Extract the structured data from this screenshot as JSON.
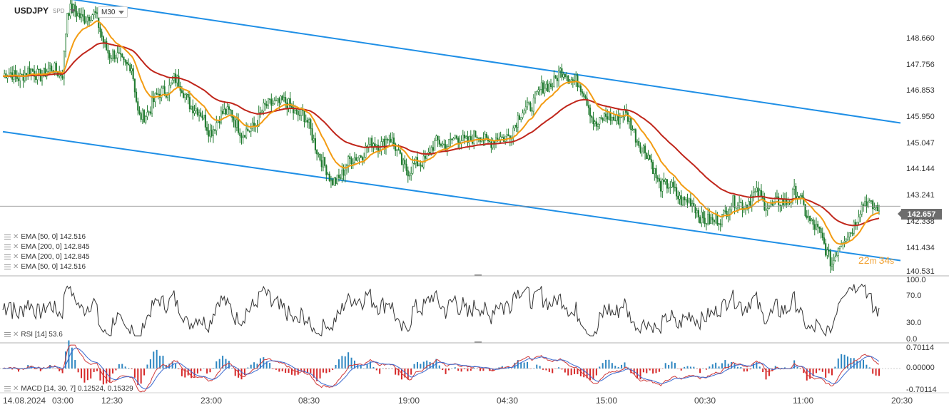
{
  "header": {
    "symbol": "USDJPY",
    "symbol_sub": "SPD",
    "timeframe": "M30"
  },
  "price_labels": [
    "148.660",
    "147.756",
    "146.853",
    "145.950",
    "145.047",
    "144.144",
    "143.241",
    "142.338",
    "141.434",
    "140.531"
  ],
  "current_price": "142.657",
  "countdown": {
    "minutes": "22",
    "minutes_unit": "m",
    "seconds": "34",
    "seconds_unit": "s"
  },
  "legends": {
    "ema1": "EMA [50,  0] 142.516",
    "ema2": "EMA [200,  0] 142.845",
    "ema3": "EMA [200,  0] 142.845",
    "ema4": "EMA [50,  0] 142.516",
    "rsi": "RSI [14] 53.6",
    "macd": "MACD [14, 30, 7] 0.12524, 0.15329"
  },
  "rsi_labels": [
    "100.0",
    "70.0",
    "30.0",
    "0.0"
  ],
  "macd_labels": [
    "0.70114",
    "0.00000",
    "-0.70114"
  ],
  "x_labels": [
    "14.08.2024",
    "03:00",
    "12:30",
    "23:00",
    "08:30",
    "19:00",
    "04:30",
    "15:00",
    "00:30",
    "11:00",
    "20:30"
  ],
  "colors": {
    "channel": "#1f8fe6",
    "ema50": "#f39c12",
    "ema200": "#c0261b",
    "candle": "#1f7a2e",
    "macd_line": "#d03a3a",
    "signal_line": "#3a6ad0",
    "hist_pos": "#2e86c1",
    "hist_neg": "#d62828"
  },
  "chart_data": [
    {
      "type": "candlestick",
      "title": "USDJPY",
      "timeframe": "M30",
      "ylim": [
        140.3,
        149.7
      ],
      "x_ticks": [
        "14.08.2024",
        "03:00",
        "12:30",
        "23:00",
        "08:30",
        "19:00",
        "04:30",
        "15:00",
        "00:30",
        "11:00",
        "20:30"
      ],
      "current_price": 142.657,
      "approx_close_path": [
        {
          "t": 0,
          "v": 147.1
        },
        {
          "t": 40,
          "v": 147.2
        },
        {
          "t": 84,
          "v": 147.3
        },
        {
          "t": 90,
          "v": 149.3
        },
        {
          "t": 130,
          "v": 149.1
        },
        {
          "t": 150,
          "v": 147.8
        },
        {
          "t": 180,
          "v": 147.5
        },
        {
          "t": 190,
          "v": 145.6
        },
        {
          "t": 240,
          "v": 147.0
        },
        {
          "t": 290,
          "v": 145.3
        },
        {
          "t": 320,
          "v": 146.0
        },
        {
          "t": 335,
          "v": 145.0
        },
        {
          "t": 380,
          "v": 146.3
        },
        {
          "t": 420,
          "v": 145.8
        },
        {
          "t": 440,
          "v": 144.7
        },
        {
          "t": 460,
          "v": 143.4
        },
        {
          "t": 500,
          "v": 144.5
        },
        {
          "t": 540,
          "v": 145.0
        },
        {
          "t": 570,
          "v": 143.8
        },
        {
          "t": 610,
          "v": 144.8
        },
        {
          "t": 660,
          "v": 145.0
        },
        {
          "t": 700,
          "v": 144.9
        },
        {
          "t": 740,
          "v": 146.2
        },
        {
          "t": 780,
          "v": 147.2
        },
        {
          "t": 805,
          "v": 147.0
        },
        {
          "t": 830,
          "v": 145.5
        },
        {
          "t": 870,
          "v": 145.8
        },
        {
          "t": 890,
          "v": 145.0
        },
        {
          "t": 920,
          "v": 143.5
        },
        {
          "t": 960,
          "v": 142.8
        },
        {
          "t": 995,
          "v": 142.0
        },
        {
          "t": 1015,
          "v": 142.6
        },
        {
          "t": 1060,
          "v": 143.0
        },
        {
          "t": 1080,
          "v": 142.6
        },
        {
          "t": 1110,
          "v": 143.1
        },
        {
          "t": 1130,
          "v": 142.3
        },
        {
          "t": 1162,
          "v": 140.8
        },
        {
          "t": 1185,
          "v": 141.8
        },
        {
          "t": 1210,
          "v": 142.8
        },
        {
          "t": 1228,
          "v": 142.657
        }
      ],
      "series": [
        {
          "name": "EMA [50,  0]",
          "last": 142.516
        },
        {
          "name": "EMA [200,  0]",
          "last": 142.845
        }
      ]
    },
    {
      "type": "line",
      "title": "RSI [14]",
      "last": 53.6,
      "ylim": [
        0,
        100
      ],
      "ticks": [
        0,
        30,
        70,
        100
      ]
    },
    {
      "type": "bar",
      "title": "MACD [14, 30, 7]",
      "macd_last": 0.12524,
      "signal_last": 0.15329,
      "ylim": [
        -0.70114,
        0.70114
      ],
      "ticks": [
        -0.70114,
        0,
        0.70114
      ]
    }
  ]
}
